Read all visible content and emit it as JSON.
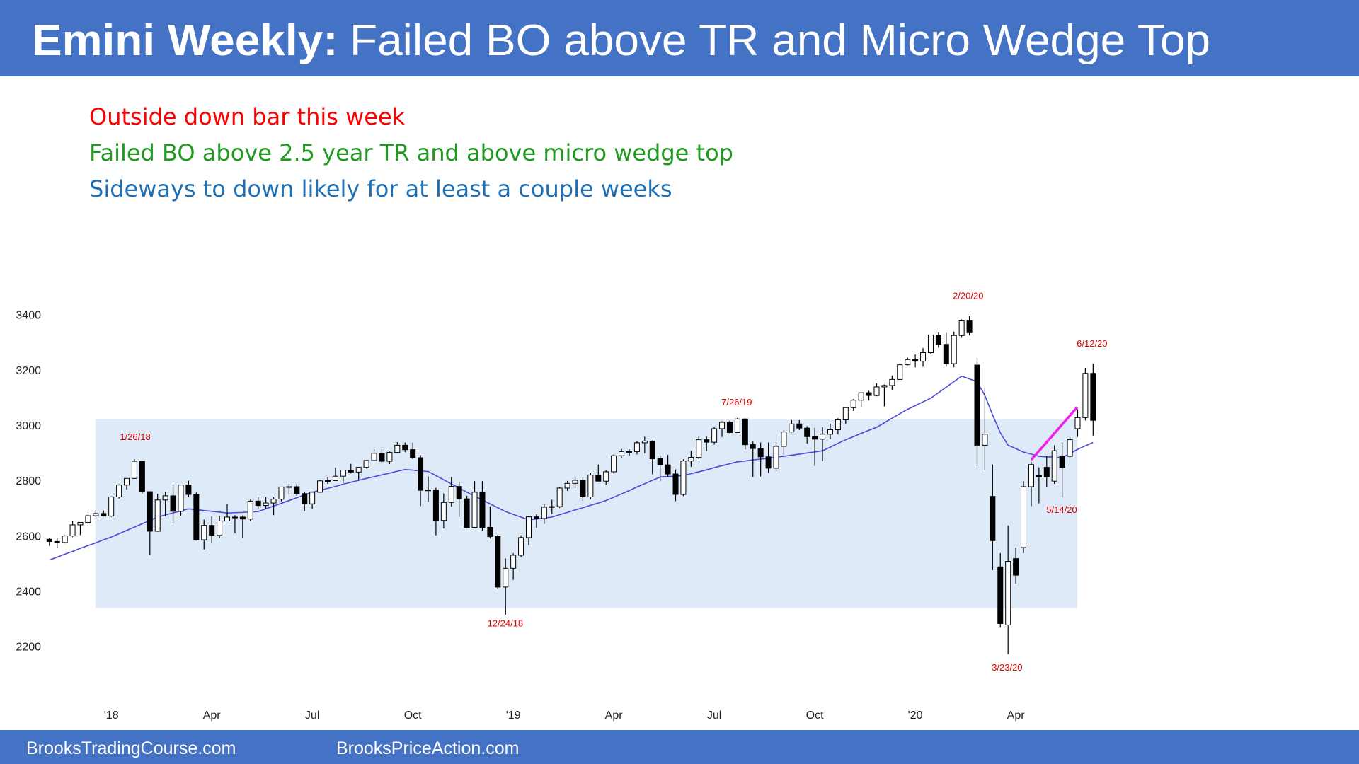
{
  "header": {
    "title_bold": "Emini Weekly:",
    "title_rest": "Failed BO above TR and Micro Wedge Top"
  },
  "notes": [
    {
      "text": "Outside down bar this week",
      "color": "#ff0000"
    },
    {
      "text": "Failed BO above 2.5 year TR and above micro wedge top",
      "color": "#1f9a1f"
    },
    {
      "text": "Sideways to down likely for at least a couple weeks",
      "color": "#1f6fb5"
    }
  ],
  "chart_data": {
    "type": "candlestick",
    "up_color": "#ffffff",
    "down_color": "#000000",
    "open": [
      2590,
      2582,
      2578,
      2602,
      2642,
      2651,
      2675,
      2683,
      2674,
      2743,
      2786,
      2810,
      2872,
      2762,
      2619,
      2732,
      2747,
      2691,
      2786,
      2752,
      2588,
      2640,
      2604,
      2656,
      2670,
      2670,
      2663,
      2728,
      2712,
      2721,
      2735,
      2779,
      2780,
      2755,
      2718,
      2760,
      2801,
      2802,
      2818,
      2840,
      2833,
      2850,
      2875,
      2901,
      2872,
      2904,
      2930,
      2914,
      2885,
      2767,
      2768,
      2658,
      2723,
      2781,
      2736,
      2633,
      2760,
      2633,
      2600,
      2417,
      2485,
      2532,
      2596,
      2671,
      2665,
      2706,
      2708,
      2775,
      2792,
      2803,
      2743,
      2822,
      2800,
      2834,
      2892,
      2907,
      2907,
      2939,
      2945,
      2881,
      2859,
      2826,
      2752,
      2873,
      2886,
      2950,
      2941,
      2990,
      3013,
      2976,
      3025,
      2932,
      2918,
      2888,
      2847,
      2926,
      2978,
      3007,
      2992,
      2961,
      2952,
      2970,
      2986,
      3022,
      3066,
      3093,
      3120,
      3110,
      3141,
      3146,
      3168,
      3221,
      3240,
      3234,
      3265,
      3329,
      3295,
      3225,
      3327,
      3380,
      3220,
      2930,
      2745,
      2490,
      2280,
      2520,
      2560,
      2780,
      2820,
      2850,
      2800,
      2890,
      2890,
      2990,
      3030,
      3190
    ],
    "high": [
      2596,
      2594,
      2605,
      2657,
      2651,
      2680,
      2695,
      2694,
      2745,
      2789,
      2811,
      2879,
      2872,
      2763,
      2754,
      2761,
      2789,
      2786,
      2802,
      2759,
      2661,
      2672,
      2675,
      2717,
      2677,
      2676,
      2733,
      2743,
      2742,
      2742,
      2780,
      2790,
      2791,
      2760,
      2763,
      2804,
      2816,
      2849,
      2841,
      2863,
      2851,
      2876,
      2916,
      2916,
      2908,
      2941,
      2940,
      2939,
      2894,
      2817,
      2776,
      2756,
      2815,
      2799,
      2747,
      2800,
      2800,
      2709,
      2606,
      2520,
      2539,
      2604,
      2675,
      2680,
      2717,
      2733,
      2779,
      2801,
      2817,
      2814,
      2830,
      2860,
      2839,
      2897,
      2917,
      2915,
      2944,
      2961,
      2948,
      2893,
      2895,
      2843,
      2879,
      2910,
      2964,
      2962,
      2996,
      3017,
      3019,
      3029,
      3027,
      2943,
      2940,
      2940,
      2940,
      2985,
      3021,
      3021,
      2999,
      2993,
      2995,
      3008,
      3028,
      3066,
      3097,
      3121,
      3127,
      3154,
      3150,
      3182,
      3226,
      3247,
      3258,
      3282,
      3329,
      3338,
      3337,
      3341,
      3385,
      3397,
      3245,
      3137,
      2860,
      2540,
      2640,
      2560,
      2800,
      2870,
      2850,
      2890,
      2930,
      2940,
      2960,
      3060,
      3210,
      3225
    ],
    "low": [
      2566,
      2557,
      2575,
      2598,
      2605,
      2645,
      2671,
      2672,
      2671,
      2737,
      2770,
      2808,
      2755,
      2533,
      2617,
      2673,
      2647,
      2675,
      2742,
      2585,
      2553,
      2575,
      2594,
      2655,
      2612,
      2594,
      2656,
      2701,
      2701,
      2677,
      2727,
      2752,
      2747,
      2692,
      2700,
      2758,
      2790,
      2802,
      2793,
      2828,
      2802,
      2846,
      2873,
      2864,
      2862,
      2903,
      2905,
      2880,
      2710,
      2725,
      2604,
      2629,
      2708,
      2671,
      2631,
      2631,
      2621,
      2593,
      2410,
      2317,
      2443,
      2525,
      2569,
      2631,
      2645,
      2681,
      2703,
      2765,
      2775,
      2728,
      2735,
      2800,
      2786,
      2828,
      2885,
      2892,
      2897,
      2900,
      2825,
      2800,
      2817,
      2728,
      2746,
      2852,
      2880,
      2909,
      2932,
      2960,
      2973,
      2975,
      2915,
      2815,
      2817,
      2830,
      2835,
      2894,
      2976,
      2985,
      2936,
      2855,
      2873,
      2952,
      2970,
      3006,
      3054,
      3068,
      3092,
      3107,
      3070,
      3128,
      3166,
      3219,
      3212,
      3214,
      3260,
      3283,
      3214,
      3212,
      3319,
      3328,
      2855,
      2840,
      2478,
      2270,
      2174,
      2430,
      2540,
      2710,
      2720,
      2780,
      2790,
      2740,
      2885,
      2960,
      3020,
      2965
    ],
    "close": [
      2582,
      2578,
      2602,
      2642,
      2651,
      2675,
      2683,
      2674,
      2743,
      2786,
      2810,
      2872,
      2762,
      2619,
      2732,
      2747,
      2691,
      2786,
      2752,
      2588,
      2640,
      2604,
      2656,
      2670,
      2670,
      2663,
      2728,
      2712,
      2721,
      2735,
      2779,
      2780,
      2755,
      2718,
      2760,
      2801,
      2802,
      2818,
      2840,
      2833,
      2850,
      2875,
      2901,
      2872,
      2904,
      2930,
      2914,
      2885,
      2767,
      2768,
      2658,
      2723,
      2781,
      2736,
      2633,
      2760,
      2633,
      2600,
      2417,
      2485,
      2532,
      2596,
      2671,
      2665,
      2706,
      2708,
      2775,
      2792,
      2803,
      2743,
      2822,
      2800,
      2834,
      2892,
      2907,
      2905,
      2939,
      2945,
      2881,
      2859,
      2826,
      2752,
      2873,
      2886,
      2950,
      2941,
      2990,
      3013,
      2976,
      3025,
      2932,
      2918,
      2888,
      2847,
      2926,
      2978,
      3007,
      2992,
      2961,
      2952,
      2970,
      2986,
      3022,
      3066,
      3093,
      3120,
      3110,
      3141,
      3146,
      3168,
      3221,
      3240,
      3234,
      3265,
      3329,
      3295,
      3225,
      3327,
      3380,
      3337,
      2930,
      2970,
      2585,
      2285,
      2510,
      2460,
      2780,
      2860,
      2815,
      2815,
      2910,
      2850,
      2950,
      3030,
      3190,
      3020
    ],
    "moving_average": {
      "color": "#4b4bdc",
      "values": [
        2515,
        2525,
        2536,
        2546,
        2557,
        2567,
        2577,
        2588,
        2598,
        2610,
        2622,
        2634,
        2646,
        2658,
        2670,
        2678,
        2685,
        2693,
        2700,
        2697,
        2694,
        2691,
        2688,
        2685,
        2686,
        2687,
        2689,
        2690,
        2700,
        2710,
        2720,
        2730,
        2740,
        2750,
        2760,
        2767,
        2774,
        2781,
        2789,
        2796,
        2803,
        2810,
        2816,
        2823,
        2829,
        2836,
        2842,
        2840,
        2837,
        2835,
        2820,
        2805,
        2790,
        2775,
        2760,
        2746,
        2732,
        2718,
        2704,
        2690,
        2680,
        2670,
        2660,
        2663,
        2667,
        2670,
        2679,
        2687,
        2696,
        2704,
        2713,
        2721,
        2730,
        2742,
        2754,
        2766,
        2779,
        2791,
        2803,
        2815,
        2817,
        2818,
        2820,
        2827,
        2834,
        2841,
        2849,
        2856,
        2863,
        2870,
        2873,
        2877,
        2880,
        2883,
        2887,
        2890,
        2894,
        2898,
        2902,
        2906,
        2910,
        2923,
        2937,
        2950,
        2961,
        2973,
        2984,
        2995,
        3011,
        3028,
        3044,
        3060,
        3073,
        3087,
        3100,
        3120,
        3140,
        3160,
        3180,
        3170,
        3160,
        3110,
        3040,
        2975,
        2930,
        2918,
        2905,
        2898,
        2890,
        2888,
        2887,
        2885,
        2900,
        2915,
        2928,
        2940
      ]
    },
    "xlim": [
      -1,
      137
    ],
    "xticks": [
      {
        "value": 8,
        "label": "'18"
      },
      {
        "value": 21,
        "label": "Apr"
      },
      {
        "value": 34,
        "label": "Jul"
      },
      {
        "value": 47,
        "label": "Oct"
      },
      {
        "value": 60,
        "label": "'19"
      },
      {
        "value": 73,
        "label": "Apr"
      },
      {
        "value": 86,
        "label": "Jul"
      },
      {
        "value": 99,
        "label": "Oct"
      },
      {
        "value": 112,
        "label": "'20"
      },
      {
        "value": 125,
        "label": "Apr"
      }
    ],
    "ylim": [
      2100,
      3500
    ],
    "yticks": [
      2200,
      2400,
      2600,
      2800,
      3000,
      3200,
      3400
    ],
    "annotations": [
      "1/26/18",
      "12/24/18",
      "7/26/19",
      "2/20/20",
      "6/12/20",
      "3/23/20",
      "5/14/20"
    ]
  },
  "footer": {
    "left": "BrooksTradingCourse.com",
    "right": "BrooksPriceAction.com"
  }
}
